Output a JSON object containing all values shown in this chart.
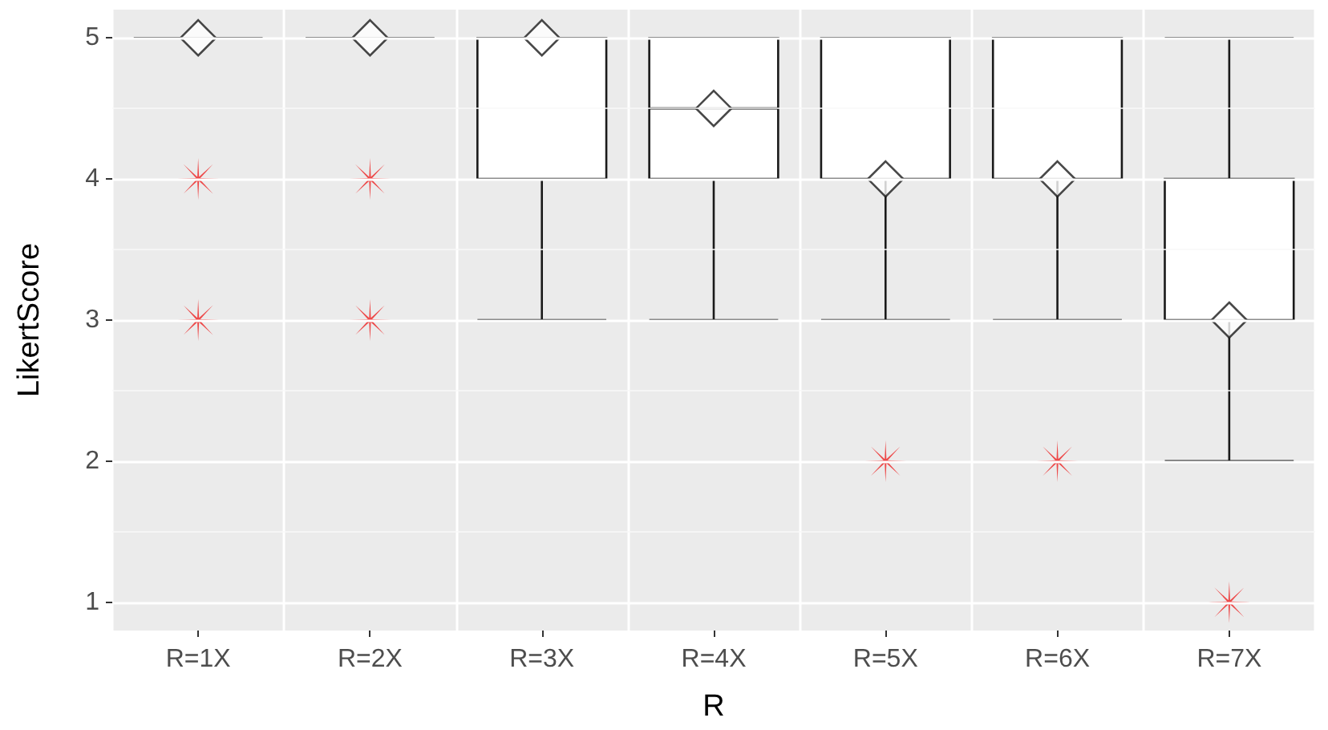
{
  "chart_data": {
    "type": "box",
    "xlabel": "R",
    "ylabel": "LikertScore",
    "categories": [
      "R=1X",
      "R=2X",
      "R=3X",
      "R=4X",
      "R=5X",
      "R=6X",
      "R=7X"
    ],
    "ylim": [
      0.8,
      5.2
    ],
    "yticks": [
      1,
      2,
      3,
      4,
      5
    ],
    "grid": true,
    "series": [
      {
        "type": "box",
        "color": "#1a1a1a",
        "marker": "diamond",
        "boxes": [
          {
            "low": 5,
            "q1": 5,
            "median": 5,
            "q3": 5,
            "high": 5,
            "mean": 5
          },
          {
            "low": 5,
            "q1": 5,
            "median": 5,
            "q3": 5,
            "high": 5,
            "mean": 5
          },
          {
            "low": 3,
            "q1": 4,
            "median": 5,
            "q3": 5,
            "high": 5,
            "mean": 5
          },
          {
            "low": 3,
            "q1": 4,
            "median": 4.5,
            "q3": 5,
            "high": 5,
            "mean": 4.5
          },
          {
            "low": 3,
            "q1": 4,
            "median": 4,
            "q3": 5,
            "high": 5,
            "mean": 4
          },
          {
            "low": 3,
            "q1": 4,
            "median": 4,
            "q3": 5,
            "high": 5,
            "mean": 4
          },
          {
            "low": 2,
            "q1": 3,
            "median": 3,
            "q3": 4,
            "high": 5,
            "mean": 3
          }
        ]
      },
      {
        "type": "scatter",
        "color": "#ee2222",
        "marker": "star",
        "x": [
          "R=1X",
          "R=1X",
          "R=2X",
          "R=2X",
          "R=5X",
          "R=6X",
          "R=7X"
        ],
        "values": [
          4,
          3,
          4,
          3,
          2,
          2,
          1
        ]
      }
    ]
  }
}
